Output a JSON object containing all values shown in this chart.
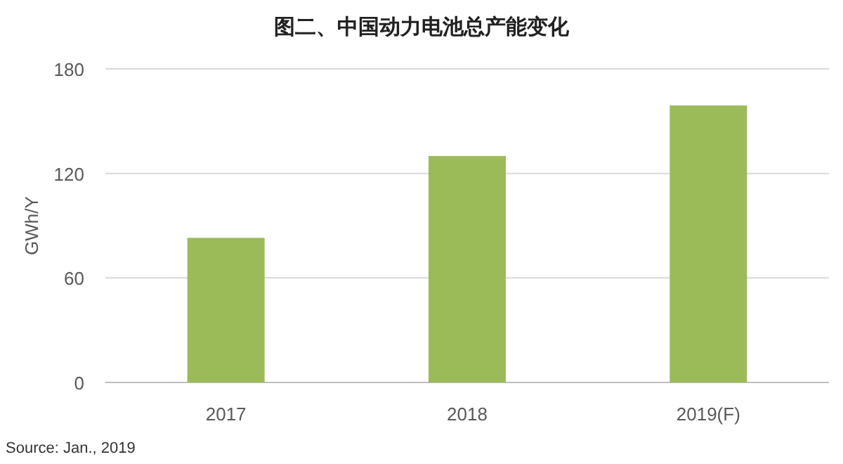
{
  "chart_data": {
    "type": "bar",
    "title": "图二、中国动力电池总产能变化",
    "ylabel": "GWh/Y",
    "categories": [
      "2017",
      "2018",
      "2019(F)"
    ],
    "values": [
      83,
      130,
      159
    ],
    "color": "#9bbb59",
    "ylim": [
      0,
      180
    ],
    "yticks": [
      0,
      60,
      120,
      180
    ],
    "grid": "y",
    "annotations": [
      "Source: Jan., 2019"
    ]
  }
}
